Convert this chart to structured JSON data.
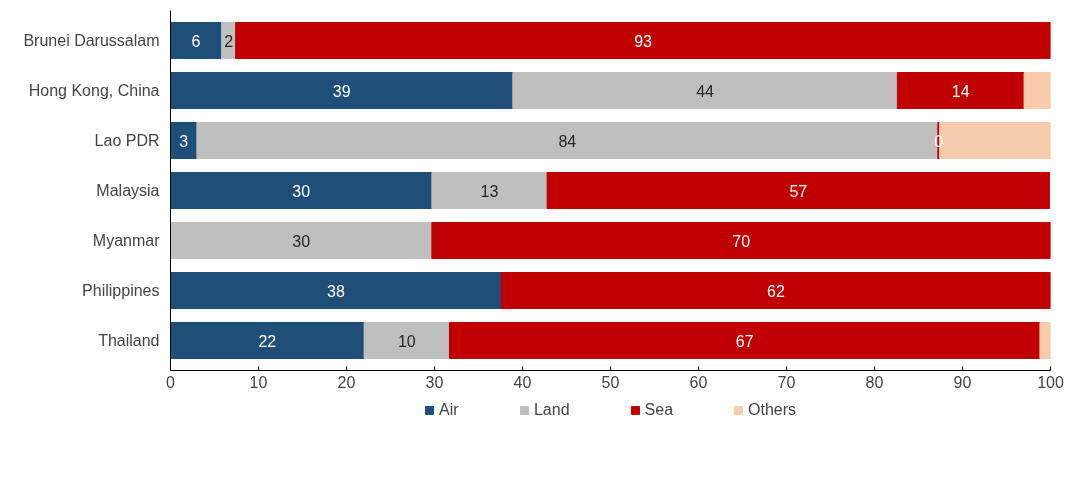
{
  "chart_data": {
    "type": "bar",
    "orientation": "horizontal",
    "stacked": true,
    "categories": [
      "Brunei Darussalam",
      "Hong Kong, China",
      "Lao PDR",
      "Malaysia",
      "Myanmar",
      "Philippines",
      "Thailand"
    ],
    "series": [
      {
        "name": "Air",
        "color": "#1f4e79",
        "values": [
          5.8,
          38.9,
          3.0,
          29.7,
          null,
          37.6,
          22.0
        ],
        "value_labels": [
          "6",
          "39",
          "3",
          "30",
          null,
          "38",
          "22"
        ]
      },
      {
        "name": "Land",
        "color": "#bfbfbf",
        "values": [
          1.6,
          43.7,
          84.2,
          13.1,
          29.7,
          null,
          9.7
        ],
        "value_labels": [
          "2",
          "44",
          "84",
          "13",
          "30",
          null,
          "10"
        ]
      },
      {
        "name": "Sea",
        "color": "#c00000",
        "values": [
          92.6,
          14.4,
          0.2,
          57.1,
          70.3,
          62.4,
          67.1
        ],
        "value_labels": [
          "93",
          "14",
          "0",
          "57",
          "70",
          "62",
          "67"
        ]
      },
      {
        "name": "Others",
        "color": "#f8cbad",
        "values": [
          null,
          3.0,
          12.6,
          null,
          null,
          null,
          1.2
        ]
      }
    ],
    "xlim": [
      0,
      100
    ],
    "xticks": [
      0,
      10,
      20,
      30,
      40,
      50,
      60,
      70,
      80,
      90,
      100
    ],
    "grid": false,
    "legend": "bottom"
  }
}
